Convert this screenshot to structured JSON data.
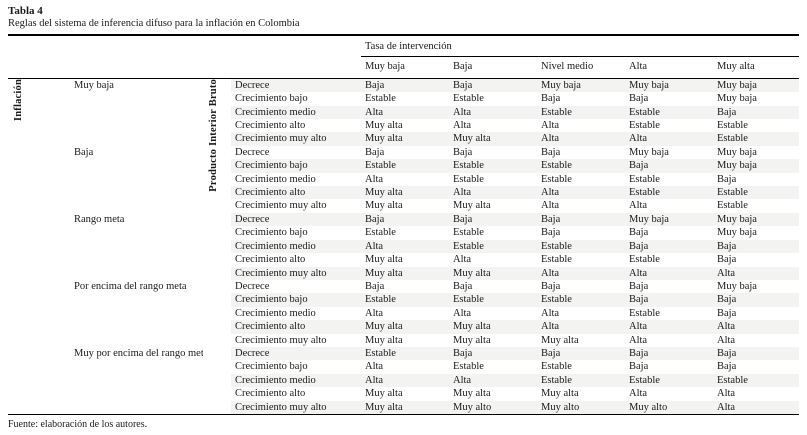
{
  "title": "Tabla 4",
  "subtitle": "Reglas del sistema de inferencia difuso para la inflación en Colombia",
  "footer": "Fuente: elaboración de los autores.",
  "table": {
    "col_group_header": "Tasa de intervención",
    "columns": [
      "Muy baja",
      "Baja",
      "Nivel medio",
      "Alta",
      "Muy alta"
    ],
    "row_axis_label": "Inflación",
    "inner_axis_label": "Producto Interior Bruto",
    "groups": [
      {
        "label": "Muy baja",
        "rows": [
          {
            "label": "Decrece",
            "values": [
              "Baja",
              "Baja",
              "Muy baja",
              "Muy baja",
              "Muy baja"
            ]
          },
          {
            "label": "Crecimiento bajo",
            "values": [
              "Estable",
              "Estable",
              "Baja",
              "Baja",
              "Muy baja"
            ]
          },
          {
            "label": "Crecimiento medio",
            "values": [
              "Alta",
              "Alta",
              "Estable",
              "Estable",
              "Baja"
            ]
          },
          {
            "label": "Crecimiento alto",
            "values": [
              "Muy alta",
              "Alta",
              "Alta",
              "Estable",
              "Estable"
            ]
          },
          {
            "label": "Crecimiento muy alto",
            "values": [
              "Muy alta",
              "Muy alta",
              "Alta",
              "Alta",
              "Estable"
            ]
          }
        ]
      },
      {
        "label": "Baja",
        "rows": [
          {
            "label": "Decrece",
            "values": [
              "Baja",
              "Baja",
              "Baja",
              "Muy baja",
              "Muy baja"
            ]
          },
          {
            "label": "Crecimiento bajo",
            "values": [
              "Estable",
              "Estable",
              "Estable",
              "Baja",
              "Muy baja"
            ]
          },
          {
            "label": "Crecimiento medio",
            "values": [
              "Alta",
              "Estable",
              "Estable",
              "Estable",
              "Baja"
            ]
          },
          {
            "label": "Crecimiento alto",
            "values": [
              "Muy alta",
              "Alta",
              "Alta",
              "Estable",
              "Estable"
            ]
          },
          {
            "label": "Crecimiento muy alto",
            "values": [
              "Muy alta",
              "Muy alta",
              "Alta",
              "Alta",
              "Estable"
            ]
          }
        ]
      },
      {
        "label": "Rango meta",
        "rows": [
          {
            "label": "Decrece",
            "values": [
              "Baja",
              "Baja",
              "Baja",
              "Muy baja",
              "Muy baja"
            ]
          },
          {
            "label": "Crecimiento bajo",
            "values": [
              "Estable",
              "Estable",
              "Baja",
              "Baja",
              "Muy baja"
            ]
          },
          {
            "label": "Crecimiento medio",
            "values": [
              "Alta",
              "Estable",
              "Estable",
              "Baja",
              "Baja"
            ]
          },
          {
            "label": "Crecimiento alto",
            "values": [
              "Muy alta",
              "Alta",
              "Estable",
              "Estable",
              "Baja"
            ]
          },
          {
            "label": "Crecimiento muy alto",
            "values": [
              "Muy alta",
              "Muy alta",
              "Alta",
              "Alta",
              "Alta"
            ]
          }
        ]
      },
      {
        "label": "Por encima del rango meta",
        "rows": [
          {
            "label": "Decrece",
            "values": [
              "Baja",
              "Baja",
              "Baja",
              "Baja",
              "Muy baja"
            ]
          },
          {
            "label": "Crecimiento bajo",
            "values": [
              "Estable",
              "Estable",
              "Estable",
              "Baja",
              "Baja"
            ]
          },
          {
            "label": "Crecimiento medio",
            "values": [
              "Alta",
              "Alta",
              "Alta",
              "Estable",
              "Baja"
            ]
          },
          {
            "label": "Crecimiento alto",
            "values": [
              "Muy alta",
              "Muy alta",
              "Alta",
              "Alta",
              "Alta"
            ]
          },
          {
            "label": "Crecimiento muy alto",
            "values": [
              "Muy alta",
              "Muy alta",
              "Muy alta",
              "Alta",
              "Alta"
            ]
          }
        ]
      },
      {
        "label": "Muy por encima del rango meta",
        "rows": [
          {
            "label": "Decrece",
            "values": [
              "Estable",
              "Baja",
              "Baja",
              "Baja",
              "Baja"
            ]
          },
          {
            "label": "Crecimiento bajo",
            "values": [
              "Alta",
              "Estable",
              "Estable",
              "Baja",
              "Baja"
            ]
          },
          {
            "label": "Crecimiento medio",
            "values": [
              "Alta",
              "Alta",
              "Estable",
              "Estable",
              "Estable"
            ]
          },
          {
            "label": "Crecimiento alto",
            "values": [
              "Muy alta",
              "Muy alta",
              "Muy alta",
              "Alta",
              "Alta"
            ]
          },
          {
            "label": "Crecimiento muy alto",
            "values": [
              "Muy alta",
              "Muy alto",
              "Muy alto",
              "Muy alto",
              "Alta"
            ]
          }
        ]
      }
    ]
  }
}
